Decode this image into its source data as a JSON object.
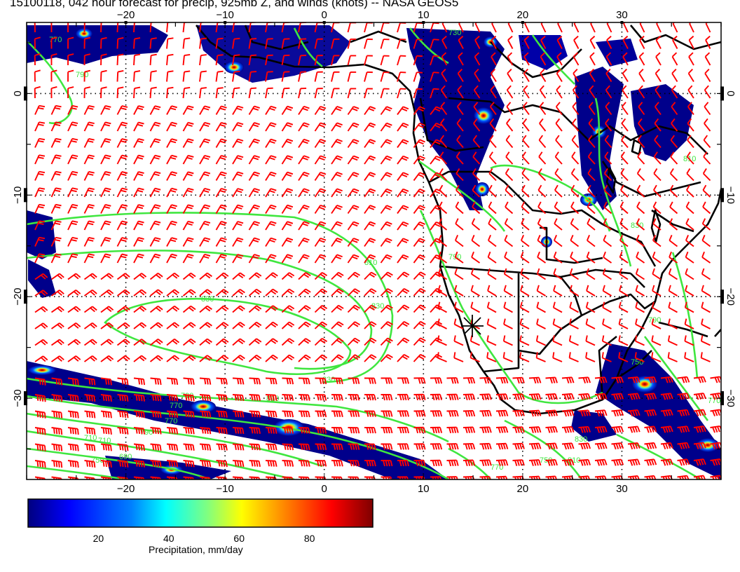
{
  "title": "15100118, 042 hour forecast for precip, 925mb Z, and winds (knots) -- NASA GEOS5",
  "map": {
    "lon_min": -30,
    "lon_max": 40,
    "lat_min": -38,
    "lat_max": 7,
    "lon_ticks": [
      {
        "value": -20,
        "label": "−20"
      },
      {
        "value": -10,
        "label": "−10"
      },
      {
        "value": 0,
        "label": "0"
      },
      {
        "value": 10,
        "label": "10"
      },
      {
        "value": 20,
        "label": "20"
      },
      {
        "value": 30,
        "label": "30"
      }
    ],
    "lat_ticks": [
      {
        "value": 0,
        "label": "0"
      },
      {
        "value": -10,
        "label": "−10"
      },
      {
        "value": -20,
        "label": "−20"
      },
      {
        "value": -30,
        "label": "−30"
      }
    ],
    "right_lat_ticks": [
      {
        "value": 0,
        "label": "0"
      },
      {
        "value": -10,
        "label": "−10"
      },
      {
        "value": -20,
        "label": "−20"
      },
      {
        "value": -30,
        "label": "−30"
      }
    ],
    "contour_labels": [
      "770",
      "790",
      "810",
      "830",
      "830",
      "790",
      "810",
      "770",
      "770",
      "790",
      "750",
      "710",
      "830",
      "790",
      "770",
      "750",
      "810",
      "830",
      "810",
      "830",
      "790",
      "770",
      "750",
      "730",
      "710",
      "690"
    ],
    "station_marker": "asterisk",
    "colors": {
      "wind_barb": "#ff0000",
      "contour": "#3fe63f",
      "coastline": "#000000",
      "grid": "#000000",
      "precip_low": "#00008b",
      "precip_high": "#800000"
    }
  },
  "colorbar": {
    "ticks": [
      20,
      40,
      60,
      80
    ],
    "label": "Precipitation, mm/day",
    "colors": [
      "#00007f",
      "#0000ff",
      "#0080ff",
      "#00ffff",
      "#80ff80",
      "#ffff00",
      "#ff8000",
      "#ff0000",
      "#7f0000"
    ]
  }
}
